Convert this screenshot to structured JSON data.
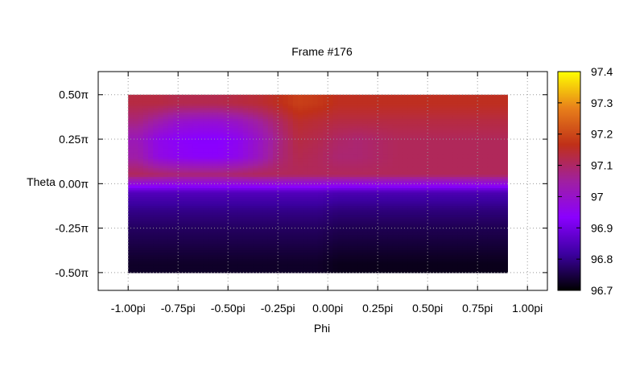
{
  "chart_data": {
    "type": "heatmap",
    "title": "Frame #176",
    "xlabel": "Phi",
    "ylabel": "Theta",
    "xlim": [
      -1.15,
      1.1
    ],
    "ylim": [
      -0.6,
      0.63
    ],
    "data_extent": {
      "x": [
        -1.0,
        0.9
      ],
      "y": [
        -0.5,
        0.5
      ]
    },
    "x_ticks": [
      {
        "value": -1.0,
        "label": "-1.00pi"
      },
      {
        "value": -0.75,
        "label": "-0.75pi"
      },
      {
        "value": -0.5,
        "label": "-0.50pi"
      },
      {
        "value": -0.25,
        "label": "-0.25pi"
      },
      {
        "value": 0.0,
        "label": "0.00pi"
      },
      {
        "value": 0.25,
        "label": "0.25pi"
      },
      {
        "value": 0.5,
        "label": "0.50pi"
      },
      {
        "value": 0.75,
        "label": "0.75pi"
      },
      {
        "value": 1.0,
        "label": "1.00pi"
      }
    ],
    "y_ticks": [
      {
        "value": 0.5,
        "label": "0.50π"
      },
      {
        "value": 0.25,
        "label": "0.25π"
      },
      {
        "value": 0.0,
        "label": "0.00π"
      },
      {
        "value": -0.25,
        "label": "-0.25π"
      },
      {
        "value": -0.5,
        "label": "-0.50π"
      }
    ],
    "grid": true,
    "colorbar": {
      "range": [
        96.7,
        97.4
      ],
      "ticks": [
        {
          "value": 97.4,
          "label": "97.4"
        },
        {
          "value": 97.3,
          "label": "97.3"
        },
        {
          "value": 97.2,
          "label": "97.2"
        },
        {
          "value": 97.1,
          "label": "97.1"
        },
        {
          "value": 97.0,
          "label": "97"
        },
        {
          "value": 96.9,
          "label": "96.9"
        },
        {
          "value": 96.8,
          "label": "96.8"
        },
        {
          "value": 96.7,
          "label": "96.7"
        }
      ],
      "palette": [
        "#000000",
        "#3c00a0",
        "#8a00ff",
        "#a020a0",
        "#c03018",
        "#e8801a",
        "#ffff00"
      ]
    },
    "grid_values": {
      "x": [
        -0.95,
        -0.85,
        -0.75,
        -0.65,
        -0.55,
        -0.45,
        -0.35,
        -0.25,
        -0.15,
        -0.05,
        0.05,
        0.15,
        0.25,
        0.35,
        0.45,
        0.55,
        0.65,
        0.75,
        0.85
      ],
      "y": [
        0.45,
        0.35,
        0.25,
        0.15,
        0.05,
        -0.05,
        -0.15,
        -0.25,
        -0.35,
        -0.45
      ],
      "z": [
        [
          97.13,
          97.13,
          97.12,
          97.12,
          97.12,
          97.13,
          97.14,
          97.16,
          97.19,
          97.18,
          97.16,
          97.16,
          97.16,
          97.16,
          97.16,
          97.16,
          97.16,
          97.16,
          97.16
        ],
        [
          97.08,
          97.04,
          97.0,
          96.99,
          96.99,
          97.01,
          97.05,
          97.1,
          97.15,
          97.14,
          97.13,
          97.13,
          97.13,
          97.13,
          97.13,
          97.13,
          97.13,
          97.13,
          97.13
        ],
        [
          97.02,
          96.96,
          96.94,
          96.93,
          96.93,
          96.95,
          97.0,
          97.07,
          97.13,
          97.12,
          97.1,
          97.09,
          97.1,
          97.11,
          97.11,
          97.11,
          97.11,
          97.11,
          97.11
        ],
        [
          97.04,
          96.97,
          96.95,
          96.94,
          96.94,
          96.96,
          97.01,
          97.08,
          97.12,
          97.11,
          97.09,
          97.09,
          97.1,
          97.11,
          97.11,
          97.11,
          97.11,
          97.11,
          97.11
        ],
        [
          97.11,
          97.1,
          97.09,
          97.09,
          97.09,
          97.1,
          97.11,
          97.11,
          97.11,
          97.11,
          97.11,
          97.11,
          97.11,
          97.11,
          97.11,
          97.11,
          97.11,
          97.11,
          97.11
        ],
        [
          96.85,
          96.85,
          96.85,
          96.85,
          96.85,
          96.85,
          96.85,
          96.85,
          96.85,
          96.85,
          96.84,
          96.84,
          96.84,
          96.84,
          96.84,
          96.84,
          96.84,
          96.84,
          96.84
        ],
        [
          96.8,
          96.8,
          96.8,
          96.8,
          96.8,
          96.8,
          96.8,
          96.8,
          96.8,
          96.8,
          96.79,
          96.79,
          96.79,
          96.79,
          96.79,
          96.79,
          96.79,
          96.79,
          96.79
        ],
        [
          96.77,
          96.77,
          96.77,
          96.77,
          96.77,
          96.77,
          96.77,
          96.77,
          96.77,
          96.77,
          96.76,
          96.76,
          96.76,
          96.76,
          96.76,
          96.76,
          96.76,
          96.76,
          96.76
        ],
        [
          96.75,
          96.75,
          96.75,
          96.75,
          96.75,
          96.75,
          96.75,
          96.75,
          96.75,
          96.75,
          96.74,
          96.74,
          96.74,
          96.74,
          96.74,
          96.74,
          96.74,
          96.74,
          96.74
        ],
        [
          96.73,
          96.73,
          96.73,
          96.73,
          96.73,
          96.73,
          96.73,
          96.73,
          96.73,
          96.73,
          96.72,
          96.72,
          96.72,
          96.72,
          96.72,
          96.72,
          96.72,
          96.72,
          96.72
        ]
      ]
    }
  }
}
